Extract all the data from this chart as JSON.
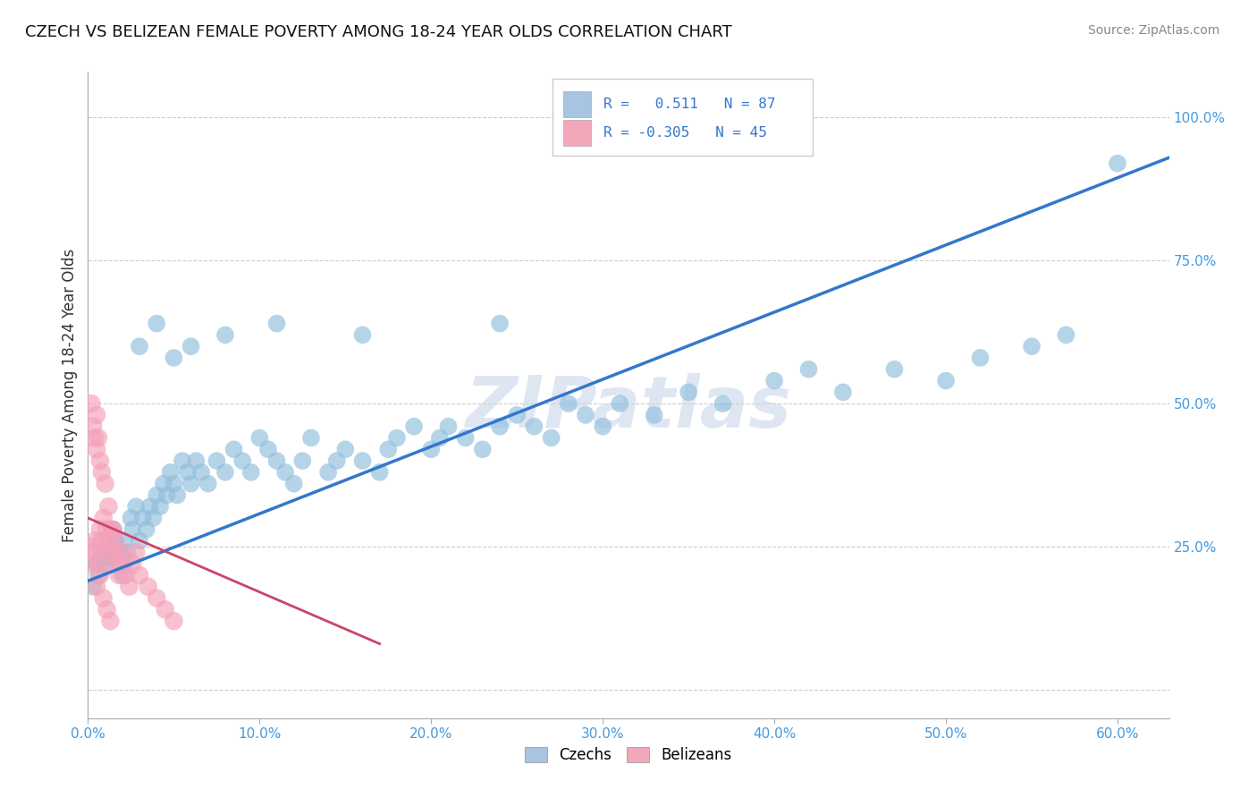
{
  "title": "CZECH VS BELIZEAN FEMALE POVERTY AMONG 18-24 YEAR OLDS CORRELATION CHART",
  "source": "Source: ZipAtlas.com",
  "xlim": [
    0.0,
    63.0
  ],
  "ylim": [
    -5.0,
    108.0
  ],
  "r_czech": 0.511,
  "n_czech": 87,
  "r_belize": -0.305,
  "n_belize": 45,
  "watermark": "ZIPatlas",
  "watermark_color": "#c8d8e8",
  "dot_color_czech": "#90bedd",
  "dot_color_belize": "#f4a0b8",
  "line_color_czech": "#3377cc",
  "line_color_belize": "#cc4466",
  "background_color": "#ffffff",
  "grid_color": "#cccccc",
  "title_color": "#111111",
  "axis_label_color": "#4499dd",
  "legend_box_color_czech": "#a8c4e0",
  "legend_box_color_belize": "#f4a7b9",
  "czech_x": [
    0.3,
    0.5,
    0.6,
    0.8,
    1.0,
    1.1,
    1.3,
    1.5,
    1.6,
    1.8,
    2.0,
    2.1,
    2.3,
    2.5,
    2.6,
    2.8,
    3.0,
    3.2,
    3.4,
    3.6,
    3.8,
    4.0,
    4.2,
    4.4,
    4.6,
    4.8,
    5.0,
    5.2,
    5.5,
    5.8,
    6.0,
    6.3,
    6.6,
    7.0,
    7.5,
    8.0,
    8.5,
    9.0,
    9.5,
    10.0,
    10.5,
    11.0,
    11.5,
    12.0,
    12.5,
    13.0,
    14.0,
    14.5,
    15.0,
    16.0,
    17.0,
    17.5,
    18.0,
    19.0,
    20.0,
    20.5,
    21.0,
    22.0,
    23.0,
    24.0,
    25.0,
    26.0,
    27.0,
    28.0,
    29.0,
    30.0,
    31.0,
    33.0,
    35.0,
    37.0,
    40.0,
    42.0,
    44.0,
    47.0,
    50.0,
    52.0,
    55.0,
    57.0,
    60.0,
    3.0,
    4.0,
    5.0,
    6.0,
    8.0,
    11.0,
    16.0,
    24.0
  ],
  "czech_y": [
    18,
    22,
    20,
    24,
    22,
    25,
    23,
    28,
    26,
    24,
    20,
    26,
    24,
    30,
    28,
    32,
    26,
    30,
    28,
    32,
    30,
    34,
    32,
    36,
    34,
    38,
    36,
    34,
    40,
    38,
    36,
    40,
    38,
    36,
    40,
    38,
    42,
    40,
    38,
    44,
    42,
    40,
    38,
    36,
    40,
    44,
    38,
    40,
    42,
    40,
    38,
    42,
    44,
    46,
    42,
    44,
    46,
    44,
    42,
    46,
    48,
    46,
    44,
    50,
    48,
    46,
    50,
    48,
    52,
    50,
    54,
    56,
    52,
    56,
    54,
    58,
    60,
    62,
    92,
    60,
    64,
    58,
    60,
    62,
    64,
    62,
    64
  ],
  "belize_x": [
    0.1,
    0.2,
    0.3,
    0.4,
    0.5,
    0.6,
    0.7,
    0.8,
    0.9,
    1.0,
    1.1,
    1.2,
    1.3,
    1.4,
    1.5,
    1.6,
    1.7,
    1.8,
    1.9,
    2.0,
    2.1,
    2.2,
    2.4,
    2.6,
    2.8,
    3.0,
    3.5,
    4.0,
    4.5,
    5.0,
    0.2,
    0.3,
    0.4,
    0.5,
    0.6,
    0.7,
    0.8,
    1.0,
    1.2,
    1.4,
    0.5,
    0.7,
    0.9,
    1.1,
    1.3
  ],
  "belize_y": [
    22,
    25,
    24,
    26,
    48,
    22,
    28,
    26,
    30,
    24,
    28,
    26,
    24,
    28,
    22,
    26,
    24,
    20,
    22,
    24,
    22,
    20,
    18,
    22,
    24,
    20,
    18,
    16,
    14,
    12,
    50,
    46,
    44,
    42,
    44,
    40,
    38,
    36,
    32,
    28,
    18,
    20,
    16,
    14,
    12
  ]
}
